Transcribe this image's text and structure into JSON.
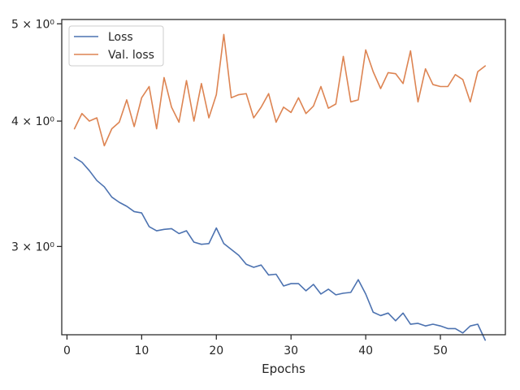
{
  "chart_data": {
    "type": "line",
    "title": "",
    "xlabel": "Epochs",
    "ylabel": "",
    "yscale": "log",
    "xlim": [
      -0.7,
      58.7
    ],
    "ylim": [
      2.45,
      5.05
    ],
    "grid": false,
    "legend": {
      "placement": "top-left"
    },
    "x_ticks": [
      {
        "value": 0,
        "label": "0"
      },
      {
        "value": 10,
        "label": "10"
      },
      {
        "value": 20,
        "label": "20"
      },
      {
        "value": 30,
        "label": "30"
      },
      {
        "value": 40,
        "label": "40"
      },
      {
        "value": 50,
        "label": "50"
      }
    ],
    "y_ticks": [
      {
        "value": 3,
        "label": "3 × 10⁰"
      },
      {
        "value": 4,
        "label": "4 × 10⁰"
      },
      {
        "value": 5,
        "label": "5 × 10⁰"
      }
    ],
    "x": [
      1,
      2,
      3,
      4,
      5,
      6,
      7,
      8,
      9,
      10,
      11,
      12,
      13,
      14,
      15,
      16,
      17,
      18,
      19,
      20,
      21,
      22,
      23,
      24,
      25,
      26,
      27,
      28,
      29,
      30,
      31,
      32,
      33,
      34,
      35,
      36,
      37,
      38,
      39,
      40,
      41,
      42,
      43,
      44,
      45,
      46,
      47,
      48,
      49,
      50,
      51,
      52,
      53,
      54,
      55,
      56
    ],
    "series": [
      {
        "name": "Loss",
        "color": "#4c72b0",
        "values": [
          3.68,
          3.64,
          3.57,
          3.49,
          3.44,
          3.36,
          3.32,
          3.29,
          3.25,
          3.24,
          3.14,
          3.11,
          3.12,
          3.125,
          3.09,
          3.11,
          3.03,
          3.015,
          3.02,
          3.13,
          3.02,
          2.98,
          2.94,
          2.88,
          2.86,
          2.875,
          2.81,
          2.815,
          2.74,
          2.755,
          2.755,
          2.71,
          2.75,
          2.69,
          2.72,
          2.685,
          2.695,
          2.7,
          2.78,
          2.69,
          2.58,
          2.56,
          2.575,
          2.53,
          2.575,
          2.51,
          2.515,
          2.5,
          2.51,
          2.5,
          2.485,
          2.485,
          2.46,
          2.5,
          2.51,
          2.42
        ]
      },
      {
        "name": "Val. loss",
        "color": "#dd8452",
        "values": [
          3.93,
          4.07,
          4.0,
          4.03,
          3.78,
          3.93,
          3.99,
          4.2,
          3.95,
          4.22,
          4.33,
          3.93,
          4.42,
          4.13,
          3.99,
          4.39,
          4.0,
          4.36,
          4.03,
          4.25,
          4.88,
          4.22,
          4.25,
          4.26,
          4.03,
          4.13,
          4.26,
          3.99,
          4.13,
          4.08,
          4.22,
          4.07,
          4.14,
          4.33,
          4.12,
          4.16,
          4.64,
          4.18,
          4.2,
          4.71,
          4.48,
          4.31,
          4.47,
          4.46,
          4.36,
          4.7,
          4.18,
          4.51,
          4.35,
          4.33,
          4.33,
          4.45,
          4.4,
          4.18,
          4.48,
          4.54
        ]
      }
    ]
  }
}
